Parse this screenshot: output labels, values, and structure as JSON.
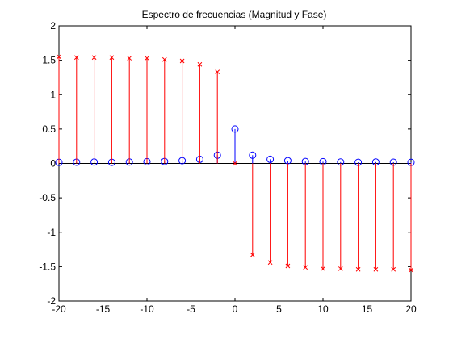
{
  "chart_data": {
    "type": "stem",
    "title": "Espectro de frecuencias (Magnitud y Fase)",
    "xlabel": "",
    "ylabel": "",
    "xlim": [
      -20,
      20
    ],
    "ylim": [
      -2,
      2
    ],
    "x_ticks": [
      -20,
      -15,
      -10,
      -5,
      0,
      5,
      10,
      15,
      20
    ],
    "x_tick_labels": [
      "-20",
      "-15",
      "-10",
      "-5",
      "0",
      "5",
      "10",
      "15",
      "20"
    ],
    "y_ticks": [
      -2,
      -1.5,
      -1,
      -0.5,
      0,
      0.5,
      1,
      1.5,
      2
    ],
    "y_tick_labels": [
      "-2",
      "-1.5",
      "-1",
      "-0.5",
      "0",
      "0.5",
      "1",
      "1.5",
      "2"
    ],
    "grid": false,
    "legend": "none",
    "series": [
      {
        "marker": "circle",
        "color": "#0000ff",
        "x": [
          -20,
          -18,
          -16,
          -14,
          -12,
          -10,
          -8,
          -6,
          -4,
          -2,
          0,
          2,
          4,
          6,
          8,
          10,
          12,
          14,
          16,
          18,
          20
        ],
        "values": [
          0.016,
          0.018,
          0.02,
          0.016,
          0.02,
          0.025,
          0.028,
          0.04,
          0.06,
          0.12,
          0.5,
          0.12,
          0.06,
          0.04,
          0.028,
          0.025,
          0.02,
          0.016,
          0.02,
          0.018,
          0.016
        ]
      },
      {
        "marker": "x",
        "color": "#ff0000",
        "x": [
          -20,
          -18,
          -16,
          -14,
          -12,
          -10,
          -8,
          -6,
          -4,
          -2,
          0,
          2,
          4,
          6,
          8,
          10,
          12,
          14,
          16,
          18,
          20
        ],
        "values": [
          1.55,
          1.54,
          1.54,
          1.54,
          1.53,
          1.53,
          1.51,
          1.49,
          1.44,
          1.33,
          0,
          -1.33,
          -1.44,
          -1.49,
          -1.51,
          -1.53,
          -1.53,
          -1.54,
          -1.54,
          -1.54,
          -1.55
        ]
      }
    ]
  }
}
